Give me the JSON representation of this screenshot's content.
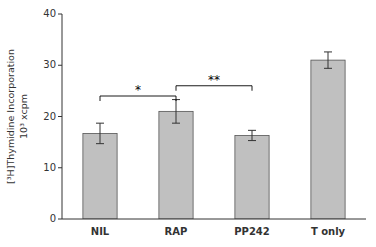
{
  "chart_data": {
    "type": "bar",
    "y_label": "[³H]Thymidine Incorporation\n10³ xcpm",
    "categories": [
      "NIL",
      "RAP",
      "PP242",
      "T only"
    ],
    "values": [
      16.7,
      21.0,
      16.3,
      31.0
    ],
    "errors": [
      2.0,
      2.3,
      1.0,
      1.6
    ],
    "color": "#C0C0C0",
    "ylim": [
      0,
      40
    ],
    "yticks": [
      0,
      10,
      20,
      30,
      40
    ],
    "grid": false,
    "annotations": [
      {
        "text": "*",
        "categories": [
          "NIL",
          "RAP"
        ],
        "y": 24.0
      },
      {
        "text": "**",
        "categories": [
          "RAP",
          "PP242"
        ],
        "y": 26.0
      }
    ]
  }
}
